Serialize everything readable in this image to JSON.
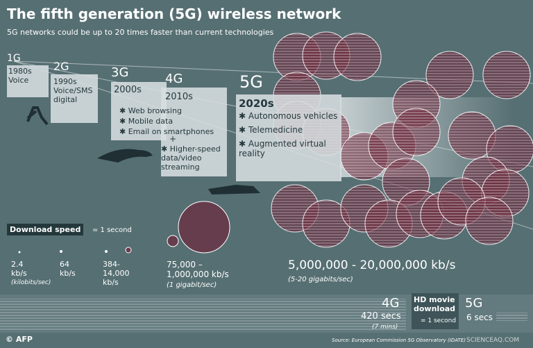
{
  "header": {
    "title": "The fifth generation (5G) wireless network",
    "subtitle": "5G networks could be up to 20 times faster than current technologies"
  },
  "generations": [
    {
      "label": "1G",
      "decade": "1980s",
      "features": [
        "Voice"
      ]
    },
    {
      "label": "2G",
      "decade": "1990s",
      "features": [
        "Voice/SMS digital"
      ]
    },
    {
      "label": "3G",
      "decade": "2000s",
      "features": [
        "Web browsing",
        "Mobile data",
        "Email on smartphones"
      ]
    },
    {
      "label": "4G",
      "decade": "2010s",
      "plus": "+",
      "features": [
        "Higher-speed data/video streaming"
      ]
    },
    {
      "label": "5G",
      "decade": "2020s",
      "features": [
        "Autonomous vehicles",
        "Telemedicine",
        "Augmented virtual reality"
      ]
    }
  ],
  "download_speed": {
    "label": "Download speed",
    "legend": "= 1 second",
    "speeds": [
      {
        "text": "2.4 kb/s",
        "note": "(kilobits/sec)"
      },
      {
        "text": "64 kb/s"
      },
      {
        "text": "384- 14,000 kb/s"
      },
      {
        "text": "75,000 – 1,000,000 kb/s",
        "note": "(1 gigabit/sec)"
      },
      {
        "text": "5,000,000 - 20,000,000 kb/s",
        "note": "(5-20 gigabits/sec)"
      }
    ]
  },
  "movie": {
    "label": "HD movie download",
    "legend": "= 1 second",
    "g4": {
      "label": "4G",
      "time": "420 secs",
      "note": "(7 mins)"
    },
    "g5": {
      "label": "5G",
      "time": "6 secs"
    }
  },
  "footer": {
    "credit": "© AFP",
    "source": "Source: European Commission 5G Observatory (IDATE)",
    "watermark": "SCIENCEAQ.COM"
  }
}
